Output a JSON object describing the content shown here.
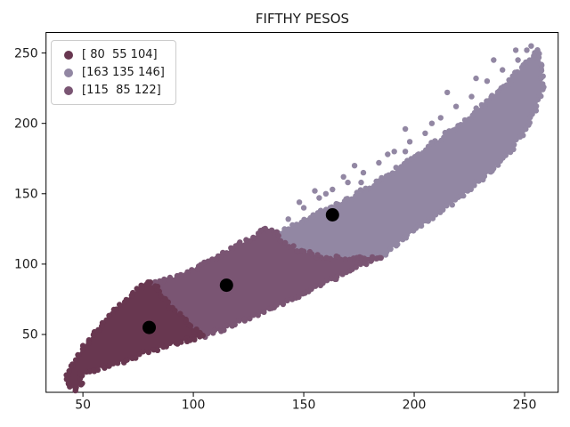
{
  "title": "FIFTHY PESOS",
  "chart_data": {
    "type": "scatter",
    "title": "FIFTHY PESOS",
    "xlabel": "",
    "ylabel": "",
    "xlim": [
      33.3,
      265.2
    ],
    "ylim": [
      8.9,
      264.6
    ],
    "x_ticks": [
      50,
      100,
      150,
      200,
      250
    ],
    "y_ticks": [
      50,
      100,
      150,
      200,
      250
    ],
    "grid": false,
    "legend": {
      "position": "upper left"
    },
    "marker_radius": 3.2,
    "centroid_radius": 7.5,
    "centroid_color": "#000000",
    "clusters": [
      {
        "name": "cluster-80-55-104",
        "label": "[ 80  55 104]",
        "color": "#683750",
        "centroid": [
          80,
          55
        ],
        "outline": [
          [
            43,
            14
          ],
          [
            46,
            11
          ],
          [
            49,
            15
          ],
          [
            49,
            21
          ],
          [
            55,
            25
          ],
          [
            62,
            28
          ],
          [
            70,
            32
          ],
          [
            78,
            37
          ],
          [
            88,
            42
          ],
          [
            97,
            46
          ],
          [
            105,
            49
          ],
          [
            101,
            53
          ],
          [
            96,
            60
          ],
          [
            91,
            68
          ],
          [
            87,
            76
          ],
          [
            84,
            83
          ],
          [
            80,
            86
          ],
          [
            76,
            84
          ],
          [
            72,
            78
          ],
          [
            67,
            71
          ],
          [
            62,
            63
          ],
          [
            57,
            54
          ],
          [
            52,
            45
          ],
          [
            48,
            36
          ],
          [
            45,
            27
          ],
          [
            43,
            20
          ]
        ],
        "outliers": []
      },
      {
        "name": "cluster-163-135-146",
        "label": "[163 135 146]",
        "color": "#9287A3",
        "centroid": [
          163,
          135
        ],
        "outline": [
          [
            185,
            105
          ],
          [
            196,
            119
          ],
          [
            210,
            135
          ],
          [
            222,
            149
          ],
          [
            234,
            165
          ],
          [
            243,
            180
          ],
          [
            250,
            195
          ],
          [
            255,
            210
          ],
          [
            258,
            225
          ],
          [
            258,
            240
          ],
          [
            256,
            252
          ],
          [
            251,
            243
          ],
          [
            246,
            235
          ],
          [
            240,
            226
          ],
          [
            233,
            216
          ],
          [
            226,
            206
          ],
          [
            218,
            196
          ],
          [
            210,
            187
          ],
          [
            202,
            178
          ],
          [
            194,
            169
          ],
          [
            186,
            161
          ],
          [
            178,
            153
          ],
          [
            170,
            146
          ],
          [
            162,
            141
          ],
          [
            154,
            135
          ],
          [
            147,
            129
          ],
          [
            141,
            124
          ],
          [
            137,
            122
          ],
          [
            141,
            115
          ],
          [
            147,
            110
          ],
          [
            156,
            106
          ],
          [
            166,
            104
          ],
          [
            176,
            105
          ]
        ],
        "outliers": [
          [
            143,
            132
          ],
          [
            150,
            140
          ],
          [
            157,
            147
          ],
          [
            163,
            153
          ],
          [
            155,
            152
          ],
          [
            170,
            158
          ],
          [
            177,
            165
          ],
          [
            184,
            172
          ],
          [
            173,
            170
          ],
          [
            191,
            180
          ],
          [
            198,
            187
          ],
          [
            205,
            193
          ],
          [
            196,
            196
          ],
          [
            212,
            204
          ],
          [
            219,
            212
          ],
          [
            226,
            219
          ],
          [
            215,
            222
          ],
          [
            233,
            230
          ],
          [
            240,
            238
          ],
          [
            247,
            245
          ],
          [
            236,
            245
          ],
          [
            251,
            252
          ],
          [
            254,
            246
          ],
          [
            228,
            232
          ],
          [
            208,
            200
          ],
          [
            188,
            178
          ],
          [
            168,
            162
          ],
          [
            148,
            144
          ],
          [
            246,
            252
          ],
          [
            253,
            255
          ],
          [
            232,
            212
          ],
          [
            244,
            228
          ],
          [
            196,
            180
          ],
          [
            176,
            158
          ],
          [
            160,
            150
          ]
        ]
      },
      {
        "name": "cluster-115-85-122",
        "label": "[115  85 122]",
        "color": "#7A5573",
        "centroid": [
          115,
          85
        ],
        "outline": [
          [
            105,
            49
          ],
          [
            112,
            53
          ],
          [
            123,
            60
          ],
          [
            136,
            69
          ],
          [
            150,
            79
          ],
          [
            164,
            90
          ],
          [
            178,
            101
          ],
          [
            185,
            105
          ],
          [
            176,
            105
          ],
          [
            166,
            104
          ],
          [
            156,
            106
          ],
          [
            147,
            110
          ],
          [
            141,
            115
          ],
          [
            137,
            122
          ],
          [
            132,
            125
          ],
          [
            127,
            119
          ],
          [
            120,
            113
          ],
          [
            112,
            106
          ],
          [
            103,
            99
          ],
          [
            94,
            92
          ],
          [
            86,
            88
          ],
          [
            80,
            86
          ],
          [
            84,
            83
          ],
          [
            87,
            76
          ],
          [
            91,
            68
          ],
          [
            96,
            60
          ],
          [
            101,
            53
          ]
        ],
        "outliers": []
      }
    ]
  }
}
